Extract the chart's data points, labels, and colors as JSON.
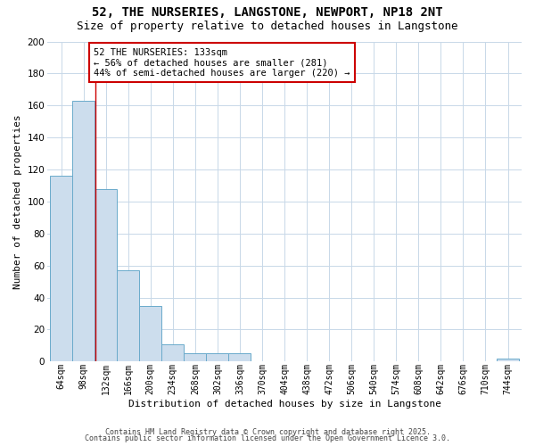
{
  "title1": "52, THE NURSERIES, LANGSTONE, NEWPORT, NP18 2NT",
  "title2": "Size of property relative to detached houses in Langstone",
  "xlabel": "Distribution of detached houses by size in Langstone",
  "ylabel": "Number of detached properties",
  "bin_labels": [
    "64sqm",
    "98sqm",
    "132sqm",
    "166sqm",
    "200sqm",
    "234sqm",
    "268sqm",
    "302sqm",
    "336sqm",
    "370sqm",
    "404sqm",
    "438sqm",
    "472sqm",
    "506sqm",
    "540sqm",
    "574sqm",
    "608sqm",
    "642sqm",
    "676sqm",
    "710sqm",
    "744sqm"
  ],
  "bin_starts": [
    64,
    98,
    132,
    166,
    200,
    234,
    268,
    302,
    336,
    370,
    404,
    438,
    472,
    506,
    540,
    574,
    608,
    642,
    676,
    710,
    744
  ],
  "bin_width": 34,
  "bar_heights": [
    116,
    163,
    108,
    57,
    35,
    11,
    5,
    5,
    5,
    0,
    0,
    0,
    0,
    0,
    0,
    0,
    0,
    0,
    0,
    0,
    2
  ],
  "bar_fill_color": "#ccdded",
  "bar_edge_color": "#6aaacb",
  "property_size": 133,
  "vline_color": "#cc0000",
  "annotation_line1": "52 THE NURSERIES: 133sqm",
  "annotation_line2": "← 56% of detached houses are smaller (281)",
  "annotation_line3": "44% of semi-detached houses are larger (220) →",
  "annotation_box_facecolor": "#ffffff",
  "annotation_box_edgecolor": "#cc0000",
  "ylim_max": 200,
  "yticks": [
    0,
    20,
    40,
    60,
    80,
    100,
    120,
    140,
    160,
    180,
    200
  ],
  "grid_color": "#c8d8e8",
  "plot_bg_color": "#ffffff",
  "fig_bg_color": "#ffffff",
  "footer1": "Contains HM Land Registry data © Crown copyright and database right 2025.",
  "footer2": "Contains public sector information licensed under the Open Government Licence 3.0.",
  "title1_fontsize": 10,
  "title2_fontsize": 9,
  "axis_label_fontsize": 8,
  "tick_label_fontsize": 7,
  "footer_fontsize": 6,
  "annotation_fontsize": 7.5
}
